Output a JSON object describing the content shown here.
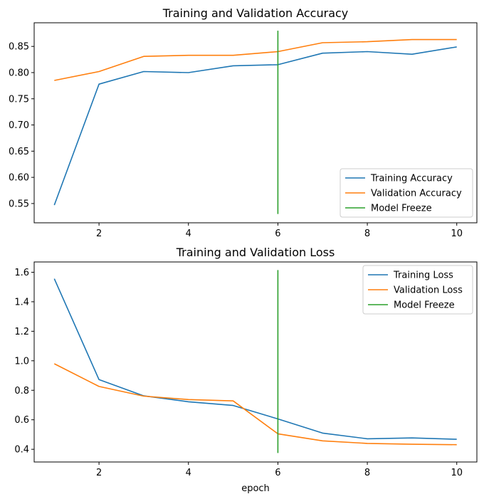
{
  "chart_data": [
    {
      "type": "line",
      "title": "Training and Validation Accuracy",
      "xlabel": "",
      "ylabel": "",
      "xlim": [
        0.55,
        10.45
      ],
      "ylim": [
        0.5132,
        0.8951
      ],
      "xticks": [
        2,
        4,
        6,
        8,
        10
      ],
      "yticks": [
        0.55,
        0.6,
        0.65,
        0.7,
        0.75,
        0.8,
        0.85
      ],
      "x": [
        1,
        2,
        3,
        4,
        5,
        6,
        7,
        8,
        9,
        10
      ],
      "grid": false,
      "legend": "lower-right",
      "series": [
        {
          "name": "Training Accuracy",
          "color": "#1f77b4",
          "values": [
            0.547,
            0.778,
            0.802,
            0.8,
            0.813,
            0.815,
            0.837,
            0.84,
            0.835,
            0.849
          ]
        },
        {
          "name": "Validation Accuracy",
          "color": "#ff7f0e",
          "values": [
            0.785,
            0.802,
            0.831,
            0.833,
            0.833,
            0.84,
            0.857,
            0.859,
            0.863,
            0.863
          ]
        }
      ],
      "vline": {
        "name": "Model Freeze",
        "color": "#2ca02c",
        "x": 6,
        "ymin": 0.53,
        "ymax": 0.88
      }
    },
    {
      "type": "line",
      "title": "Training and Validation Loss",
      "xlabel": "epoch",
      "ylabel": "",
      "xlim": [
        0.55,
        10.45
      ],
      "ylim": [
        0.3139,
        1.6698
      ],
      "xticks": [
        2,
        4,
        6,
        8,
        10
      ],
      "yticks": [
        0.4,
        0.6,
        0.8,
        1.0,
        1.2,
        1.4,
        1.6
      ],
      "x": [
        1,
        2,
        3,
        4,
        5,
        6,
        7,
        8,
        9,
        10
      ],
      "grid": false,
      "legend": "upper-right",
      "series": [
        {
          "name": "Training Loss",
          "color": "#1f77b4",
          "values": [
            1.556,
            0.872,
            0.762,
            0.722,
            0.697,
            0.606,
            0.51,
            0.471,
            0.477,
            0.468
          ]
        },
        {
          "name": "Validation Loss",
          "color": "#ff7f0e",
          "values": [
            0.98,
            0.826,
            0.76,
            0.737,
            0.728,
            0.505,
            0.457,
            0.44,
            0.434,
            0.431
          ]
        }
      ],
      "vline": {
        "name": "Model Freeze",
        "color": "#2ca02c",
        "x": 6,
        "ymin": 0.375,
        "ymax": 1.615
      }
    }
  ]
}
